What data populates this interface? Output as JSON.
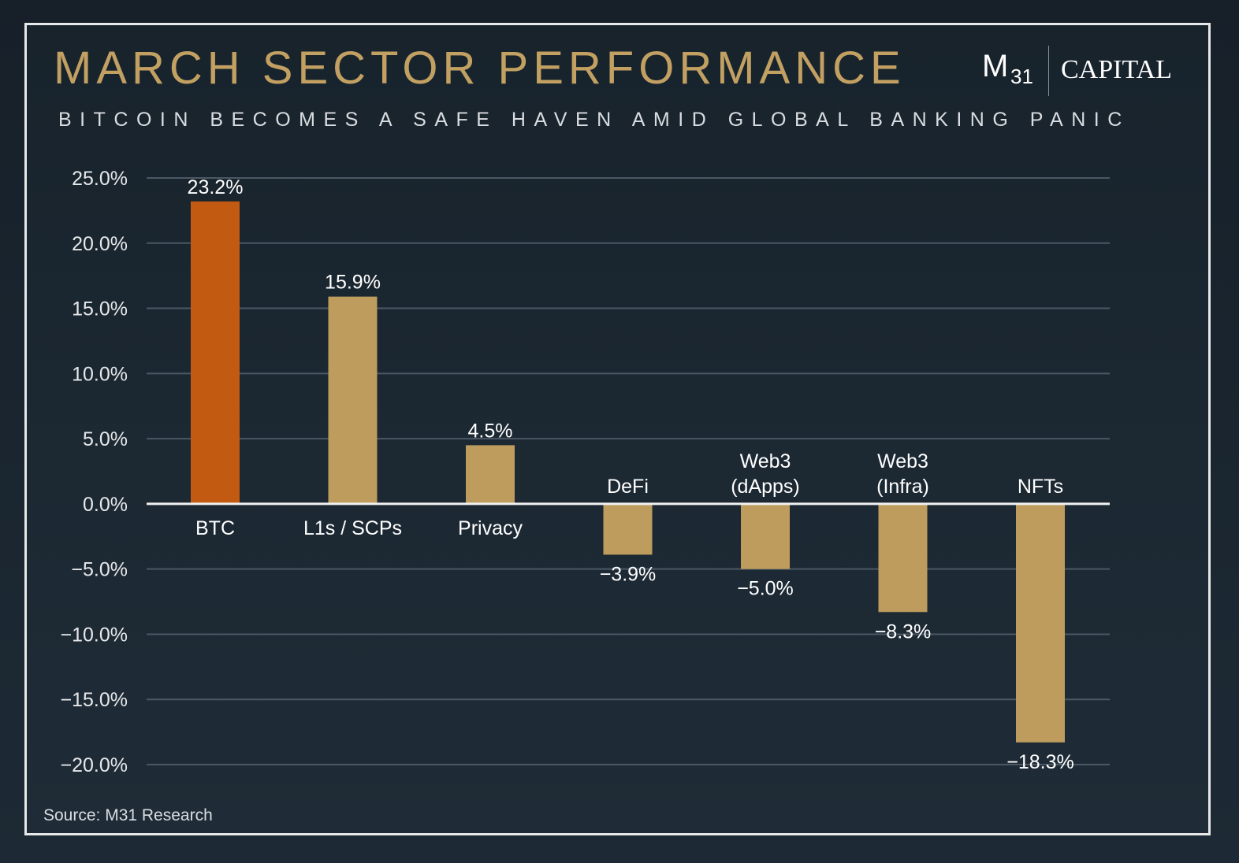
{
  "header": {
    "title": "MARCH SECTOR PERFORMANCE",
    "subtitle": "BITCOIN BECOMES A SAFE HAVEN AMID GLOBAL BANKING PANIC"
  },
  "logo": {
    "m": "M",
    "sub": "31",
    "capital": "CAPITAL"
  },
  "footer": {
    "source": "Source: M31 Research"
  },
  "colors": {
    "highlight": "#c25a12",
    "bar": "#bd9c5e",
    "grid": "#4b5863",
    "zero_line": "#f2f2f2"
  },
  "chart_data": {
    "type": "bar",
    "categories": [
      [
        "BTC"
      ],
      [
        "L1s / SCPs"
      ],
      [
        "Privacy"
      ],
      [
        "DeFi"
      ],
      [
        "Web3",
        "(dApps)"
      ],
      [
        "Web3",
        "(Infra)"
      ],
      [
        "NFTs"
      ]
    ],
    "values": [
      23.2,
      15.9,
      4.5,
      -3.9,
      -5.0,
      -8.3,
      -18.3
    ],
    "value_labels": [
      "23.2%",
      "15.9%",
      "4.5%",
      "−3.9%",
      "−5.0%",
      "−8.3%",
      "−18.3%"
    ],
    "highlight_index": 0,
    "yticks": [
      25,
      20,
      15,
      10,
      5,
      0,
      -5,
      -10,
      -15,
      -20
    ],
    "ytick_labels": [
      "25.0%",
      "20.0%",
      "15.0%",
      "10.0%",
      "5.0%",
      "0.0%",
      "−5.0%",
      "−10.0%",
      "−15.0%",
      "−20.0%"
    ],
    "ylim": [
      -20,
      25
    ],
    "grid": true
  }
}
